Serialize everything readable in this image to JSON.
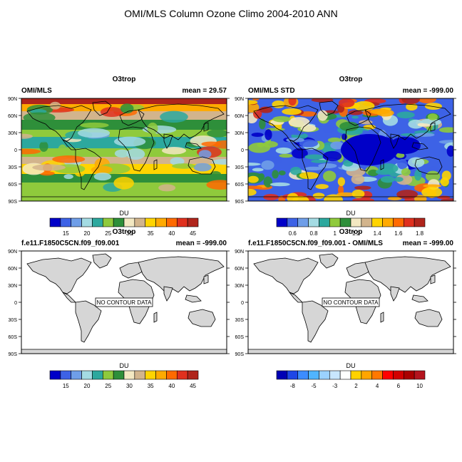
{
  "title": "OMI/MLS Column Ozone Climo 2004-2010 ANN",
  "colors": {
    "land": "#d6d6d6",
    "ozone_scale": [
      "#0000c8",
      "#3d62e6",
      "#6f9ee8",
      "#a4dbe3",
      "#2ca89e",
      "#8fca3c",
      "#2e8f3a",
      "#f3e8c2",
      "#d2b48c",
      "#ffd400",
      "#ffaa00",
      "#ff6a00",
      "#e0301e",
      "#b0251c",
      "#c8302a"
    ],
    "std_scale": [
      "#0000c8",
      "#3d62e6",
      "#6f9ee8",
      "#a4dbe3",
      "#2ca89e",
      "#8fca3c",
      "#2e8f3a",
      "#f3e8c2",
      "#d2b48c",
      "#ffd400",
      "#ffaa00",
      "#ff6a00",
      "#e0301e",
      "#b0251c",
      "#c8302a"
    ],
    "diff_scale": [
      "#0000b4",
      "#1e46e6",
      "#3c8cff",
      "#50b4ff",
      "#9bd2ff",
      "#c8e6ff",
      "#ffffff",
      "#ffd200",
      "#ffa500",
      "#ff7800",
      "#ff0000",
      "#d20000",
      "#aa0000",
      "#b4141e"
    ]
  },
  "panels": [
    {
      "id": "p1",
      "title": "O3trop",
      "left_label": "OMI/MLS",
      "right_label": "mean =  29.57",
      "unit": "DU",
      "ticks": [
        "15",
        "20",
        "25",
        "30",
        "35",
        "40",
        "45"
      ],
      "no_data": ""
    },
    {
      "id": "p2",
      "title": "O3trop",
      "left_label": "OMI/MLS STD",
      "right_label": "mean = -999.00",
      "unit": "DU",
      "ticks": [
        "0.6",
        "0.8",
        "1",
        "1.2",
        "1.4",
        "1.6",
        "1.8"
      ],
      "no_data": ""
    },
    {
      "id": "p3",
      "title": "O3trop",
      "left_label": "f.e11.F1850C5CN.f09_f09.001",
      "right_label": "mean = -999.00",
      "unit": "DU",
      "ticks": [
        "15",
        "20",
        "25",
        "30",
        "35",
        "40",
        "45"
      ],
      "no_data": "NO CONTOUR DATA"
    },
    {
      "id": "p4",
      "title": "O3trop",
      "left_label": "f.e11.F1850C5CN.f09_f09.001 - OMI/MLS",
      "right_label": "mean = -999.00",
      "unit": "DU",
      "ticks": [
        "-8",
        "-5",
        "-3",
        "2",
        "4",
        "6",
        "10"
      ],
      "no_data": "NO CONTOUR DATA"
    }
  ],
  "lat_ticks": [
    "90N",
    "60N",
    "30N",
    "0",
    "30S",
    "60S",
    "90S"
  ]
}
